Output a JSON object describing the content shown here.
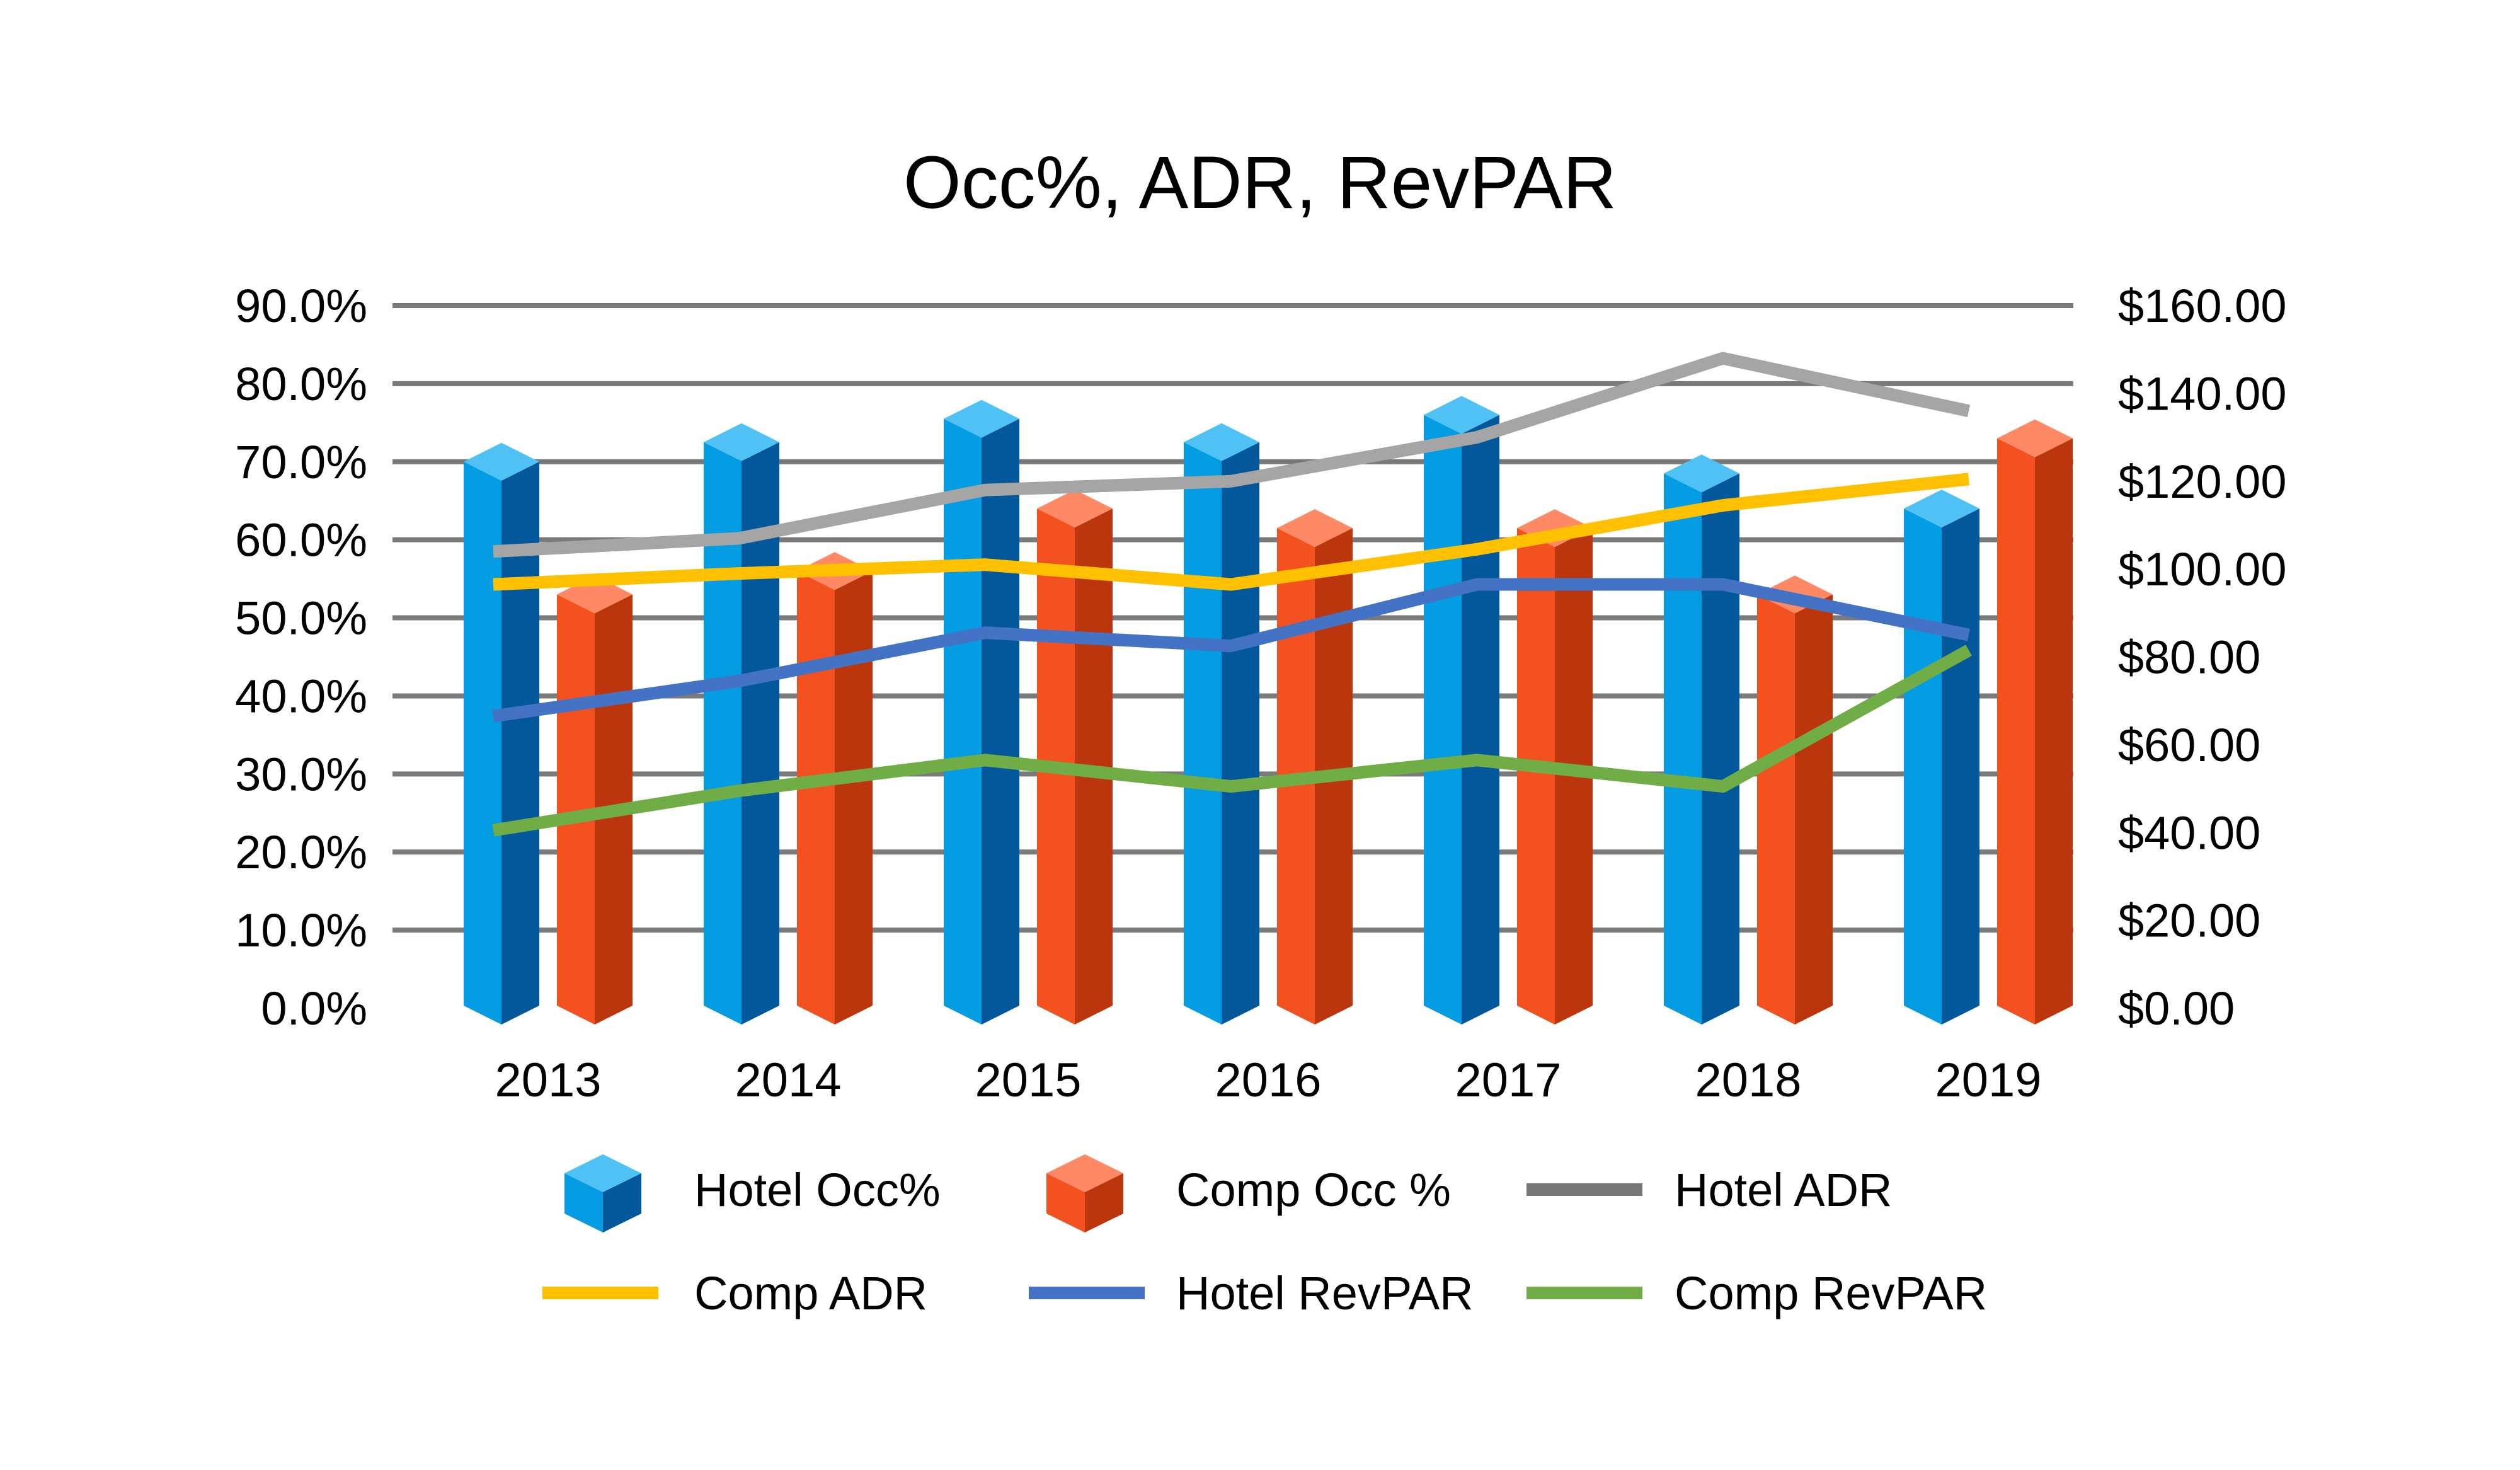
{
  "chart_data": {
    "type": "bar",
    "title": "Occ%, ADR, RevPAR",
    "xlabel": "",
    "ylabel": "",
    "categories": [
      "2013",
      "2014",
      "2015",
      "2016",
      "2017",
      "2018",
      "2019"
    ],
    "left_axis": {
      "unit": "percent",
      "ylim": [
        0,
        90
      ],
      "ticks": [
        0,
        10,
        20,
        30,
        40,
        50,
        60,
        70,
        80,
        90
      ],
      "tick_labels": [
        "0.0%",
        "10.0%",
        "20.0%",
        "30.0%",
        "40.0%",
        "50.0%",
        "60.0%",
        "70.0%",
        "80.0%",
        "90.0%"
      ]
    },
    "right_axis": {
      "unit": "dollars",
      "ylim": [
        0,
        160
      ],
      "ticks": [
        0,
        20,
        40,
        60,
        80,
        100,
        120,
        140,
        160
      ],
      "tick_labels": [
        "$0.00",
        "$20.00",
        "$40.00",
        "$60.00",
        "$80.00",
        "$100.00",
        "$120.00",
        "$140.00",
        "$160.00"
      ]
    },
    "grid": true,
    "legend_position": "bottom",
    "series": [
      {
        "name": "Hotel Occ%",
        "type": "bar3d",
        "axis": "left",
        "color": "#049CE3",
        "side_color": "#02589A",
        "top_color": "#4FC1F5",
        "values": [
          70.0,
          72.5,
          75.5,
          72.5,
          76.0,
          68.5,
          64.0
        ]
      },
      {
        "name": "Comp Occ %",
        "type": "bar3d",
        "axis": "left",
        "color": "#F35220",
        "side_color": "#BC360D",
        "top_color": "#FE8964",
        "values": [
          53.0,
          56.0,
          64.0,
          61.5,
          61.5,
          53.0,
          73.0
        ]
      },
      {
        "name": "Hotel ADR",
        "type": "line",
        "axis": "right",
        "color": "#A5A5A5",
        "legend_color": "#767676",
        "values": [
          104.0,
          107.0,
          118.0,
          120.0,
          130.0,
          148.0,
          136.0
        ]
      },
      {
        "name": "Comp ADR",
        "type": "line",
        "axis": "right",
        "color": "#FFC000",
        "values": [
          96.5,
          99.0,
          101.0,
          96.5,
          104.5,
          114.5,
          120.5
        ]
      },
      {
        "name": "Hotel RevPAR",
        "type": "line",
        "axis": "right",
        "color": "#4472C4",
        "values": [
          66.5,
          74.5,
          85.5,
          82.5,
          96.5,
          96.5,
          85.0
        ]
      },
      {
        "name": "Comp RevPAR",
        "type": "line",
        "axis": "right",
        "color": "#70AD47",
        "values": [
          40.5,
          49.5,
          56.5,
          50.5,
          56.5,
          50.5,
          81.5
        ]
      }
    ],
    "gridline_color": "#7A7A7A"
  }
}
